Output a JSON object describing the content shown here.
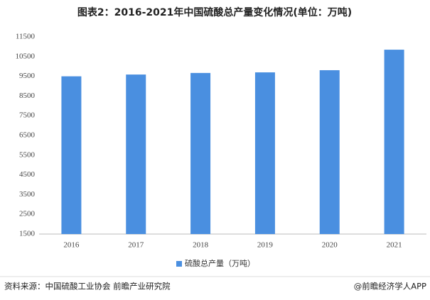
{
  "chart_data": {
    "type": "bar",
    "title": "图表2：2016-2021年中国硫酸总产量变化情况(单位：万吨)",
    "categories": [
      "2016",
      "2017",
      "2018",
      "2019",
      "2020",
      "2021"
    ],
    "series": [
      {
        "name": "硫酸总产量（万吨）",
        "color": "#4a8fe0",
        "values": [
          9500,
          9590,
          9670,
          9700,
          9810,
          10850
        ]
      }
    ],
    "ylim": [
      1500,
      11500
    ],
    "yticks": [
      1500,
      2500,
      3500,
      4500,
      5500,
      6500,
      7500,
      8500,
      9500,
      10500,
      11500
    ],
    "grid": false,
    "legend": "bottom",
    "source": "资料来源：中国硫酸工业协会 前瞻产业研究院",
    "credit": "@前瞻经济学人APP"
  }
}
